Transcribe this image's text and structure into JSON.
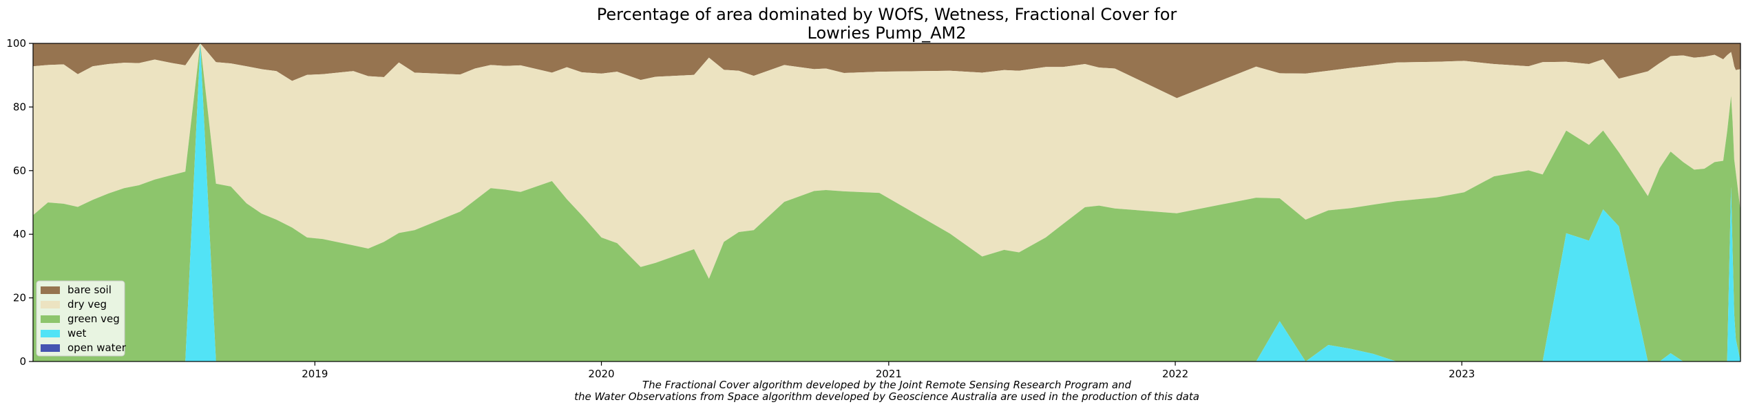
{
  "chart_data": {
    "type": "area",
    "stacked": true,
    "title_lines": [
      "Percentage of area dominated by WOfS, Wetness, Fractional Cover for",
      "Lowries Pump_AM2"
    ],
    "xlabel": "",
    "ylabel": "",
    "x_range": [
      "2018-01-07",
      "2023-12-22"
    ],
    "ylim": [
      0,
      100
    ],
    "y_ticks": [
      0,
      20,
      40,
      60,
      80,
      100
    ],
    "x_ticks": [
      {
        "date": "2019-01-01",
        "label": "2019"
      },
      {
        "date": "2020-01-01",
        "label": "2020"
      },
      {
        "date": "2021-01-01",
        "label": "2021"
      },
      {
        "date": "2022-01-01",
        "label": "2022"
      },
      {
        "date": "2023-01-01",
        "label": "2023"
      }
    ],
    "grid": false,
    "legend_position": "lower-left",
    "footnote_lines": [
      "The Fractional Cover algorithm developed by the Joint Remote Sensing Research Program and",
      "the Water Observations from Space algorithm developed by Geoscience Australia are used in the production of this data"
    ],
    "series_order_bottom_to_top": [
      "open water",
      "wet",
      "green veg",
      "dry veg",
      "bare soil"
    ],
    "series": [
      {
        "name": "bare soil",
        "color": "#967450"
      },
      {
        "name": "dry veg",
        "color": "#ece3c1"
      },
      {
        "name": "green veg",
        "color": "#8dc56c"
      },
      {
        "name": "wet",
        "color": "#52e3f6"
      },
      {
        "name": "open water",
        "color": "#4554b1"
      }
    ],
    "series_note": "Each point lists cumulative stack boundaries: wet = top of wet band, green = top of green veg band, dry = top of dry veg band; bare soil fills to 100. Open water is 0 throughout.",
    "points": [
      {
        "date": "2018-01-07",
        "wet": 0,
        "green": 46,
        "dry": 92.8
      },
      {
        "date": "2018-01-26",
        "wet": 0,
        "green": 50,
        "dry": 93.2
      },
      {
        "date": "2018-02-15",
        "wet": 0,
        "green": 49.6,
        "dry": 93.4
      },
      {
        "date": "2018-03-05",
        "wet": 0,
        "green": 48.6,
        "dry": 90.3
      },
      {
        "date": "2018-03-24",
        "wet": 0,
        "green": 50.8,
        "dry": 92.8
      },
      {
        "date": "2018-04-13",
        "wet": 0,
        "green": 52.8,
        "dry": 93.5
      },
      {
        "date": "2018-05-03",
        "wet": 0,
        "green": 54.5,
        "dry": 93.9
      },
      {
        "date": "2018-05-22",
        "wet": 0,
        "green": 55.4,
        "dry": 93.8
      },
      {
        "date": "2018-06-11",
        "wet": 0,
        "green": 57.2,
        "dry": 94.9
      },
      {
        "date": "2018-07-01",
        "wet": 0,
        "green": 58.5,
        "dry": 93.9
      },
      {
        "date": "2018-07-20",
        "wet": 0,
        "green": 59.7,
        "dry": 93.1
      },
      {
        "date": "2018-08-08",
        "wet": 100,
        "green": 100,
        "dry": 100
      },
      {
        "date": "2018-08-28",
        "wet": 0,
        "green": 55.9,
        "dry": 94.1
      },
      {
        "date": "2018-09-16",
        "wet": 0,
        "green": 55,
        "dry": 93.7
      },
      {
        "date": "2018-10-06",
        "wet": 0,
        "green": 49.7,
        "dry": 92.8
      },
      {
        "date": "2018-10-25",
        "wet": 0,
        "green": 46.5,
        "dry": 91.9
      },
      {
        "date": "2018-11-13",
        "wet": 0,
        "green": 44.6,
        "dry": 91.3
      },
      {
        "date": "2018-12-03",
        "wet": 0,
        "green": 42.1,
        "dry": 88.2
      },
      {
        "date": "2018-12-22",
        "wet": 0,
        "green": 39,
        "dry": 90.1
      },
      {
        "date": "2019-01-11",
        "wet": 0,
        "green": 38.5,
        "dry": 90.3
      },
      {
        "date": "2019-02-19",
        "wet": 0,
        "green": 36.5,
        "dry": 91.3
      },
      {
        "date": "2019-03-10",
        "wet": 0,
        "green": 35.5,
        "dry": 89.7
      },
      {
        "date": "2019-03-30",
        "wet": 0,
        "green": 37.6,
        "dry": 89.4
      },
      {
        "date": "2019-04-18",
        "wet": 0,
        "green": 40.4,
        "dry": 94
      },
      {
        "date": "2019-05-08",
        "wet": 0,
        "green": 41.3,
        "dry": 90.8
      },
      {
        "date": "2019-07-05",
        "wet": 0,
        "green": 47.1,
        "dry": 90.2
      },
      {
        "date": "2019-07-24",
        "wet": 0,
        "green": 50.7,
        "dry": 92.1
      },
      {
        "date": "2019-08-13",
        "wet": 0,
        "green": 54.5,
        "dry": 93.2
      },
      {
        "date": "2019-09-01",
        "wet": 0,
        "green": 54,
        "dry": 92.9
      },
      {
        "date": "2019-09-20",
        "wet": 0,
        "green": 53.3,
        "dry": 93.1
      },
      {
        "date": "2019-10-30",
        "wet": 0,
        "green": 56.7,
        "dry": 90.8
      },
      {
        "date": "2019-11-18",
        "wet": 0,
        "green": 51,
        "dry": 92.5
      },
      {
        "date": "2019-12-07",
        "wet": 0,
        "green": 46,
        "dry": 90.9
      },
      {
        "date": "2020-01-01",
        "wet": 0,
        "green": 39,
        "dry": 90.5
      },
      {
        "date": "2020-01-21",
        "wet": 0,
        "green": 37.2,
        "dry": 91.1
      },
      {
        "date": "2020-02-20",
        "wet": 0,
        "green": 29.7,
        "dry": 88.5
      },
      {
        "date": "2020-03-10",
        "wet": 0,
        "green": 31,
        "dry": 89.5
      },
      {
        "date": "2020-04-28",
        "wet": 0,
        "green": 35.3,
        "dry": 90.1
      },
      {
        "date": "2020-05-17",
        "wet": 0,
        "green": 26,
        "dry": 95.5
      },
      {
        "date": "2020-06-05",
        "wet": 0,
        "green": 37.6,
        "dry": 91.7
      },
      {
        "date": "2020-06-24",
        "wet": 0,
        "green": 40.7,
        "dry": 91.4
      },
      {
        "date": "2020-07-13",
        "wet": 0,
        "green": 41.3,
        "dry": 89.8
      },
      {
        "date": "2020-08-21",
        "wet": 0,
        "green": 50.2,
        "dry": 93.2
      },
      {
        "date": "2020-09-28",
        "wet": 0,
        "green": 53.6,
        "dry": 91.9
      },
      {
        "date": "2020-10-13",
        "wet": 0,
        "green": 53.9,
        "dry": 92.1
      },
      {
        "date": "2020-11-05",
        "wet": 0,
        "green": 53.5,
        "dry": 90.7
      },
      {
        "date": "2020-12-20",
        "wet": 0,
        "green": 53,
        "dry": 91.1
      },
      {
        "date": "2021-03-20",
        "wet": 0,
        "green": 40.2,
        "dry": 91.4
      },
      {
        "date": "2021-04-30",
        "wet": 0,
        "green": 33,
        "dry": 90.8
      },
      {
        "date": "2021-05-28",
        "wet": 0,
        "green": 35.1,
        "dry": 91.6
      },
      {
        "date": "2021-06-16",
        "wet": 0,
        "green": 34.3,
        "dry": 91.4
      },
      {
        "date": "2021-07-20",
        "wet": 0,
        "green": 39,
        "dry": 92.6
      },
      {
        "date": "2021-08-11",
        "wet": 0,
        "green": 43.2,
        "dry": 92.6
      },
      {
        "date": "2021-09-08",
        "wet": 0,
        "green": 48.5,
        "dry": 93.5
      },
      {
        "date": "2021-09-26",
        "wet": 0,
        "green": 49,
        "dry": 92.4
      },
      {
        "date": "2021-10-16",
        "wet": 0,
        "green": 48.1,
        "dry": 92.1
      },
      {
        "date": "2022-01-03",
        "wet": 0,
        "green": 46.6,
        "dry": 82.8
      },
      {
        "date": "2022-04-14",
        "wet": 0,
        "green": 51.5,
        "dry": 92.7
      },
      {
        "date": "2022-05-14",
        "wet": 12.7,
        "green": 51.3,
        "dry": 90.6
      },
      {
        "date": "2022-06-16",
        "wet": 0,
        "green": 44.6,
        "dry": 90.5
      },
      {
        "date": "2022-07-15",
        "wet": 5.2,
        "green": 47.5,
        "dry": 91.4
      },
      {
        "date": "2022-08-12",
        "wet": 4,
        "green": 48.2,
        "dry": 92.3
      },
      {
        "date": "2022-09-10",
        "wet": 2.4,
        "green": 49.3,
        "dry": 93.1
      },
      {
        "date": "2022-10-10",
        "wet": 0,
        "green": 50.4,
        "dry": 94
      },
      {
        "date": "2022-11-30",
        "wet": 0,
        "green": 51.6,
        "dry": 94.2
      },
      {
        "date": "2023-01-04",
        "wet": 0,
        "green": 53.2,
        "dry": 94.5
      },
      {
        "date": "2023-02-11",
        "wet": 0,
        "green": 58.2,
        "dry": 93.5
      },
      {
        "date": "2023-03-27",
        "wet": 0,
        "green": 60.1,
        "dry": 92.8
      },
      {
        "date": "2023-04-14",
        "wet": 0,
        "green": 58.8,
        "dry": 94.1
      },
      {
        "date": "2023-05-14",
        "wet": 40.3,
        "green": 72.6,
        "dry": 94.2
      },
      {
        "date": "2023-06-12",
        "wet": 38,
        "green": 68.1,
        "dry": 93.5
      },
      {
        "date": "2023-06-30",
        "wet": 47.8,
        "green": 72.6,
        "dry": 95
      },
      {
        "date": "2023-07-20",
        "wet": 42.5,
        "green": 65.8,
        "dry": 88.9
      },
      {
        "date": "2023-08-26",
        "wet": 0,
        "green": 52,
        "dry": 91.2
      },
      {
        "date": "2023-09-10",
        "wet": 0,
        "green": 60.8,
        "dry": 93.8
      },
      {
        "date": "2023-09-24",
        "wet": 2.6,
        "green": 66,
        "dry": 96
      },
      {
        "date": "2023-10-10",
        "wet": 0,
        "green": 62.7,
        "dry": 96.2
      },
      {
        "date": "2023-10-24",
        "wet": 0,
        "green": 60.3,
        "dry": 95.5
      },
      {
        "date": "2023-11-06",
        "wet": 0,
        "green": 60.6,
        "dry": 95.8
      },
      {
        "date": "2023-11-19",
        "wet": 0,
        "green": 62.7,
        "dry": 96.4
      },
      {
        "date": "2023-11-30",
        "wet": 0,
        "green": 63.1,
        "dry": 95
      },
      {
        "date": "2023-12-05",
        "wet": 0,
        "green": 72.3,
        "dry": 96.3
      },
      {
        "date": "2023-12-10",
        "wet": 54.9,
        "green": 83.5,
        "dry": 97.3
      },
      {
        "date": "2023-12-12",
        "wet": 34.1,
        "green": 75.1,
        "dry": 95.2
      },
      {
        "date": "2023-12-14",
        "wet": 15,
        "green": 63.5,
        "dry": 92.8
      },
      {
        "date": "2023-12-16",
        "wet": 7.1,
        "green": 59.5,
        "dry": 91.6
      },
      {
        "date": "2023-12-22",
        "wet": 0,
        "green": 47.4,
        "dry": 91.9
      }
    ]
  }
}
